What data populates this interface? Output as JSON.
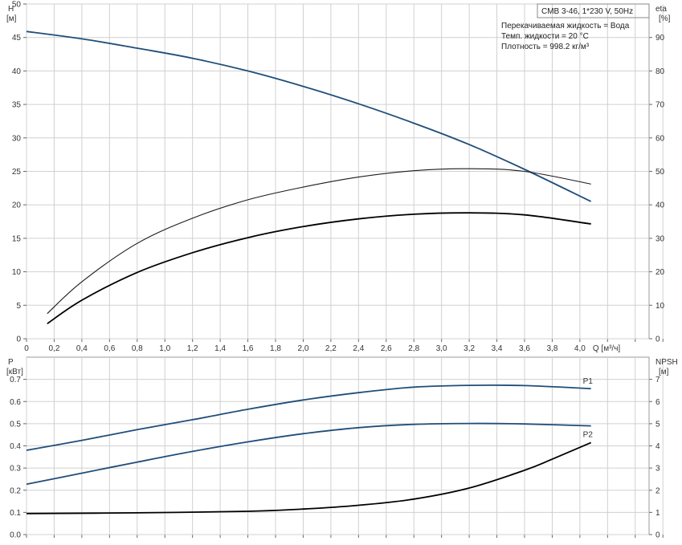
{
  "chart_data": [
    {
      "type": "line",
      "name": "performance",
      "xlim": [
        0,
        4.5
      ],
      "x_ticks": [
        "0",
        "0,2",
        "0,4",
        "0,6",
        "0,8",
        "1,0",
        "1,2",
        "1,4",
        "1,6",
        "1,8",
        "2,0",
        "2,2",
        "2,4",
        "2,6",
        "2,8",
        "3,0",
        "3,2",
        "3,4",
        "3,6",
        "3,8",
        "4,0"
      ],
      "xlabel": "Q [м³/ч]",
      "left_axis": {
        "label_line1": "H",
        "label_line2": "[м]",
        "lim": [
          0,
          50
        ],
        "ticks": [
          "0",
          "5",
          "10",
          "15",
          "20",
          "25",
          "30",
          "35",
          "40",
          "45",
          "50"
        ]
      },
      "right_axis": {
        "label_line1": "eta",
        "label_line2": "[%]",
        "lim": [
          0,
          100
        ],
        "ticks": [
          "0",
          "10",
          "20",
          "30",
          "40",
          "50",
          "60",
          "70",
          "80",
          "90"
        ]
      },
      "grid": true,
      "legend_box": "CMB 3-46, 1*230 V, 50Hz",
      "info_lines": [
        "Перекачиваемая жидкость = Вода",
        "Темп. жидкости = 20 °C",
        "Плотность = 998.2 кг/м³"
      ],
      "series": [
        {
          "axis": "left",
          "color": "#1f4e79",
          "x": [
            0,
            0.4,
            0.8,
            1.2,
            1.6,
            2.0,
            2.4,
            2.8,
            3.2,
            3.6,
            4.08
          ],
          "y": [
            45.9,
            44.8,
            43.4,
            41.9,
            40.0,
            37.7,
            35.1,
            32.2,
            29.0,
            25.3,
            20.5
          ]
        },
        {
          "axis": "right",
          "color": "#1a1a1a",
          "x": [
            0.15,
            0.4,
            0.8,
            1.2,
            1.6,
            2.0,
            2.4,
            2.8,
            3.2,
            3.6,
            4.08
          ],
          "y": [
            7.5,
            17,
            28.5,
            36,
            41.5,
            45.3,
            48.3,
            50.2,
            50.8,
            50.0,
            46.2
          ]
        },
        {
          "axis": "right",
          "color": "#000000",
          "x": [
            0.15,
            0.4,
            0.8,
            1.2,
            1.6,
            2.0,
            2.4,
            2.8,
            3.2,
            3.6,
            4.08
          ],
          "y": [
            4.5,
            11.5,
            19.8,
            25.7,
            30.2,
            33.5,
            35.8,
            37.2,
            37.6,
            37.0,
            34.3
          ]
        }
      ]
    },
    {
      "type": "line",
      "name": "power-npsh",
      "xlim": [
        0,
        4.5
      ],
      "left_axis": {
        "label_line1": "P",
        "label_line2": "[кВт]",
        "lim": [
          0,
          0.8
        ],
        "ticks": [
          "0.0",
          "0.1",
          "0.2",
          "0.3",
          "0.4",
          "0.5",
          "0.6",
          "0.7"
        ]
      },
      "right_axis": {
        "label_line1": "NPSH",
        "label_line2": "[м]",
        "lim": [
          0,
          8
        ],
        "ticks": [
          "0",
          "1",
          "2",
          "3",
          "4",
          "5",
          "6",
          "7"
        ]
      },
      "grid": true,
      "series": [
        {
          "name": "P1",
          "axis": "left",
          "color": "#1f4e79",
          "x": [
            0,
            0.4,
            0.8,
            1.2,
            1.6,
            2.0,
            2.4,
            2.8,
            3.2,
            3.6,
            4.08
          ],
          "y": [
            0.38,
            0.425,
            0.473,
            0.518,
            0.565,
            0.607,
            0.64,
            0.665,
            0.673,
            0.672,
            0.658
          ]
        },
        {
          "name": "P2",
          "axis": "left",
          "color": "#1f4e79",
          "x": [
            0,
            0.4,
            0.8,
            1.2,
            1.6,
            2.0,
            2.4,
            2.8,
            3.2,
            3.6,
            4.08
          ],
          "y": [
            0.227,
            0.277,
            0.327,
            0.375,
            0.418,
            0.455,
            0.482,
            0.497,
            0.501,
            0.499,
            0.49
          ]
        },
        {
          "axis": "right",
          "color": "#000000",
          "x": [
            0,
            0.8,
            1.6,
            2.0,
            2.4,
            2.8,
            3.2,
            3.6,
            3.8,
            4.08
          ],
          "y": [
            0.95,
            0.98,
            1.05,
            1.15,
            1.32,
            1.6,
            2.1,
            2.9,
            3.4,
            4.15
          ]
        }
      ]
    }
  ]
}
